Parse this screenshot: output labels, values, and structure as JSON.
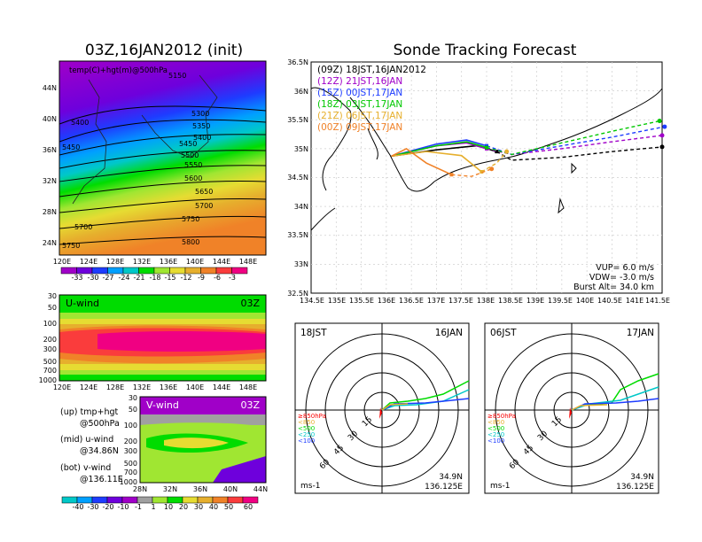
{
  "header": {
    "left_title": "03Z,16JAN2012 (init)",
    "right_title": "Sonde Tracking Forecast"
  },
  "colors": {
    "scale": [
      "#a000c8",
      "#6e00dc",
      "#1e3cff",
      "#00a0ff",
      "#00c8c8",
      "#00dc00",
      "#a0e632",
      "#e6dc32",
      "#e6af2d",
      "#f08228",
      "#fa3c3c",
      "#f00082"
    ],
    "vscale": [
      "#00c8c8",
      "#00a0ff",
      "#1e3cff",
      "#6e00dc",
      "#a000c8",
      "#a0a0a0",
      "#a0e632",
      "#00dc00",
      "#e6dc32",
      "#e6af2d",
      "#f08228",
      "#fa3c3c",
      "#f00082"
    ]
  },
  "map_panel": {
    "label": "temp(C)+hgt(m)@500hPa",
    "lat_labels": [
      "44N",
      "40N",
      "36N",
      "32N",
      "28N",
      "24N"
    ],
    "lon_labels": [
      "120E",
      "124E",
      "128E",
      "132E",
      "136E",
      "140E",
      "144E",
      "148E"
    ],
    "contour_labels": [
      "5150",
      "5300",
      "5350",
      "5400",
      "5400",
      "5450",
      "5450",
      "5500",
      "5550",
      "5600",
      "5650",
      "5700",
      "5700",
      "5750",
      "5750",
      "5800"
    ],
    "colorbar_labels": [
      "-33",
      "-30",
      "-27",
      "-24",
      "-21",
      "-18",
      "-15",
      "-12",
      "-9",
      "-6",
      "-3"
    ]
  },
  "u_panel": {
    "title": "U-wind",
    "time": "03Z",
    "y_labels": [
      "30",
      "50",
      "100",
      "200",
      "300",
      "500",
      "700",
      "1000"
    ],
    "x_labels": [
      "120E",
      "124E",
      "128E",
      "132E",
      "136E",
      "140E",
      "144E",
      "148E"
    ]
  },
  "v_panel": {
    "title": "V-wind",
    "time": "03Z",
    "y_labels": [
      "30",
      "50",
      "100",
      "200",
      "300",
      "500",
      "700",
      "1000"
    ],
    "x_labels": [
      "28N",
      "32N",
      "36N",
      "40N",
      "44N"
    ],
    "colorbar_labels": [
      "-40",
      "-30",
      "-20",
      "-10",
      "-1",
      "1",
      "10",
      "20",
      "30",
      "40",
      "50",
      "60"
    ]
  },
  "notes": [
    {
      "line1": "(up) tmp+hgt",
      "line2": "@500hPa"
    },
    {
      "line1": "(mid) u-wind",
      "line2": "@34.86N"
    },
    {
      "line1": "(bot) v-wind",
      "line2": "@136.11E"
    }
  ],
  "track_panel": {
    "legend": [
      {
        "text": "(09Z)  18JST,16JAN2012",
        "color": "#000000"
      },
      {
        "text": "(12Z)  21JST,16JAN",
        "color": "#a000c8"
      },
      {
        "text": "(15Z)  00JST,17JAN",
        "color": "#1e3cff"
      },
      {
        "text": "(18Z)  03JST,17JAN",
        "color": "#00c800"
      },
      {
        "text": "(21Z)  06JST,17JAN",
        "color": "#e6af2d"
      },
      {
        "text": "(00Z)  09JST,17JAN",
        "color": "#f08228"
      }
    ],
    "params": [
      "VUP=  6.0  m/s",
      "VDW= -3.0  m/s",
      "Burst Alt=  34.0  km"
    ],
    "lat_labels": [
      "36.5N",
      "36N",
      "35.5N",
      "35N",
      "34.5N",
      "34N",
      "33.5N",
      "33N",
      "32.5N"
    ],
    "lon_labels": [
      "134.5E",
      "135E",
      "135.5E",
      "136E",
      "136.5E",
      "137E",
      "137.5E",
      "138E",
      "138.5E",
      "139E",
      "139.5E",
      "140E",
      "140.5E",
      "141E",
      "141.5E"
    ]
  },
  "hodo_left": {
    "time": "18JST",
    "date": "16JAN",
    "rings": [
      "15",
      "30",
      "45",
      "60"
    ],
    "levels": [
      "≥850hPa",
      "<850",
      "<500",
      "<250",
      "<100"
    ],
    "level_colors": [
      "#fa0000",
      "#e6af2d",
      "#00dc00",
      "#00c8c8",
      "#1e3cff"
    ],
    "lat": "34.9N",
    "lon": "136.125E",
    "unit": "ms-1"
  },
  "hodo_right": {
    "time": "06JST",
    "date": "17JAN",
    "rings": [
      "15",
      "30",
      "45",
      "60"
    ],
    "levels": [
      "≥850hPa",
      "<850",
      "<500",
      "<250",
      "<100"
    ],
    "level_colors": [
      "#fa0000",
      "#e6af2d",
      "#00dc00",
      "#00c8c8",
      "#1e3cff"
    ],
    "lat": "34.9N",
    "lon": "136.125E",
    "unit": "ms-1"
  },
  "chart_data": [
    {
      "type": "heatmap",
      "title": "temp(C)+hgt(m)@500hPa",
      "x": [
        "120E",
        "124E",
        "128E",
        "132E",
        "136E",
        "140E",
        "144E",
        "148E"
      ],
      "y": [
        "24N",
        "28N",
        "32N",
        "36N",
        "40N",
        "44N"
      ],
      "color_scale": [
        -33,
        -30,
        -27,
        -24,
        -21,
        -18,
        -15,
        -12,
        -9,
        -6,
        -3
      ],
      "contour_levels": [
        5150,
        5300,
        5350,
        5400,
        5450,
        5500,
        5550,
        5600,
        5650,
        5700,
        5750,
        5800
      ]
    },
    {
      "type": "heatmap",
      "title": "U-wind",
      "x": [
        "120E",
        "124E",
        "128E",
        "132E",
        "136E",
        "140E",
        "144E",
        "148E"
      ],
      "y": [
        30,
        50,
        100,
        200,
        300,
        500,
        700,
        1000
      ]
    },
    {
      "type": "heatmap",
      "title": "V-wind",
      "x": [
        "28N",
        "32N",
        "36N",
        "40N",
        "44N"
      ],
      "y": [
        30,
        50,
        100,
        200,
        300,
        500,
        700,
        1000
      ],
      "color_scale": [
        -40,
        -30,
        -20,
        -10,
        -1,
        1,
        10,
        20,
        30,
        40,
        50,
        60
      ]
    },
    {
      "type": "line",
      "title": "Sonde Tracking Forecast",
      "xlim": [
        134.5,
        141.5
      ],
      "ylim": [
        32.5,
        36.5
      ],
      "series": [
        {
          "name": "(09Z)  18JST,16JAN2012",
          "color": "#000000",
          "x": [
            136.1,
            137.0,
            137.8,
            138.2,
            138.5,
            139.5,
            140.5,
            141.5
          ],
          "y": [
            34.87,
            34.98,
            35.05,
            34.95,
            34.8,
            34.85,
            34.95,
            35.03
          ]
        },
        {
          "name": "(12Z)  21JST,16JAN",
          "color": "#a000c8",
          "x": [
            136.1,
            137.0,
            137.6,
            138.0,
            138.5,
            139.5,
            140.5,
            141.5
          ],
          "y": [
            34.87,
            35.05,
            35.1,
            35.0,
            34.9,
            35.0,
            35.12,
            35.23
          ]
        },
        {
          "name": "(15Z)  00JST,17JAN",
          "color": "#1e3cff",
          "x": [
            136.1,
            137.0,
            137.6,
            138.0,
            138.5,
            139.5,
            140.5,
            141.55
          ],
          "y": [
            34.87,
            35.08,
            35.15,
            35.05,
            34.9,
            35.05,
            35.2,
            35.38
          ]
        },
        {
          "name": "(18Z)  03JST,17JAN",
          "color": "#00c800",
          "x": [
            136.1,
            137.0,
            137.6,
            138.0,
            138.5,
            139.5,
            140.5,
            141.45
          ],
          "y": [
            34.87,
            35.05,
            35.12,
            35.02,
            34.9,
            35.1,
            35.3,
            35.48
          ]
        },
        {
          "name": "(21Z)  06JST,17JAN",
          "color": "#e6af2d",
          "x": [
            136.1,
            136.8,
            137.5,
            137.9,
            138.2,
            138.4
          ],
          "y": [
            34.87,
            34.95,
            34.88,
            34.6,
            34.75,
            34.95
          ]
        },
        {
          "name": "(00Z)  09JST,17JAN",
          "color": "#f08228",
          "x": [
            136.1,
            136.4,
            136.8,
            137.3,
            137.7,
            138.1
          ],
          "y": [
            34.87,
            35.0,
            34.75,
            34.55,
            34.52,
            34.65
          ]
        }
      ]
    }
  ]
}
